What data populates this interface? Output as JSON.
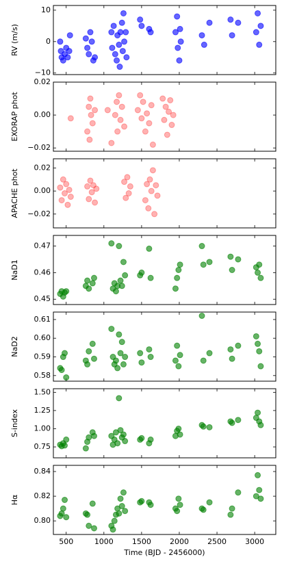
{
  "chart_data": [
    {
      "type": "scatter",
      "ylabel": "RV (m/s)",
      "color": "#0000ff",
      "opacity": 0.6,
      "x": [
        420,
        430,
        440,
        460,
        480,
        500,
        520,
        540,
        550,
        760,
        780,
        800,
        820,
        840,
        860,
        880,
        1100,
        1110,
        1130,
        1150,
        1170,
        1180,
        1200,
        1210,
        1220,
        1240,
        1250,
        1260,
        1270,
        1290,
        1300,
        1480,
        1500,
        1600,
        1620,
        1950,
        1970,
        1980,
        2000,
        2010,
        2020,
        2300,
        2330,
        2400,
        2680,
        2700,
        2780,
        3020,
        3040,
        3060,
        3080
      ],
      "values": [
        0,
        -3,
        -5,
        -6,
        -4,
        -2,
        -5,
        -3,
        2,
        1,
        -2,
        -4,
        3,
        0,
        -6,
        -5,
        3,
        -2,
        5,
        -4,
        -6,
        2,
        -1,
        -8,
        3,
        6,
        -3,
        9,
        0,
        3,
        -5,
        7,
        5,
        4,
        3,
        3,
        8,
        -2,
        -6,
        4,
        0,
        2,
        -1,
        6,
        7,
        2,
        6,
        3,
        9,
        -1,
        5
      ],
      "xlim": [
        330,
        3280
      ],
      "xticks": [
        500,
        1000,
        1500,
        2000,
        2500,
        3000
      ],
      "ylim": [
        -10.5,
        11.5
      ],
      "yticks": [
        {
          "value": -10,
          "label": "−10"
        },
        0,
        10
      ]
    },
    {
      "type": "scatter",
      "ylabel": "EXORAP phot",
      "color": "#ff0000",
      "opacity": 0.3,
      "x": [
        560,
        780,
        800,
        810,
        820,
        830,
        850,
        880,
        1050,
        1100,
        1150,
        1170,
        1180,
        1200,
        1220,
        1240,
        1270,
        1450,
        1480,
        1500,
        1520,
        1550,
        1570,
        1600,
        1630,
        1650,
        1780,
        1800,
        1820,
        1840,
        1860,
        1880,
        1900,
        1920
      ],
      "values": [
        -0.002,
        -0.01,
        0.005,
        -0.015,
        0.01,
        0,
        -0.005,
        0.003,
        0.003,
        -0.017,
        0,
        0.008,
        -0.01,
        0.012,
        -0.003,
        0.005,
        -0.007,
        0.003,
        0.012,
        -0.002,
        0.008,
        -0.01,
        0.001,
        -0.005,
        0.006,
        -0.018,
        0.01,
        -0.003,
        0.005,
        -0.012,
        0.002,
        0.009,
        -0.006,
        0
      ],
      "xlim": [
        330,
        3280
      ],
      "xticks": [
        500,
        1000,
        1500,
        2000,
        2500,
        3000
      ],
      "ylim": [
        -0.022,
        0.02
      ],
      "yticks": [
        {
          "value": -0.02,
          "label": "−0.02"
        },
        {
          "value": 0,
          "label": "0.00"
        },
        0.02
      ]
    },
    {
      "type": "scatter",
      "ylabel": "APACHE phot",
      "color": "#ff0000",
      "opacity": 0.3,
      "x": [
        420,
        440,
        460,
        480,
        500,
        520,
        540,
        560,
        780,
        800,
        820,
        840,
        860,
        880,
        900,
        1270,
        1290,
        1310,
        1330,
        1350,
        1550,
        1570,
        1590,
        1610,
        1630,
        1650,
        1670,
        1690,
        1710
      ],
      "values": [
        0.003,
        -0.008,
        0.01,
        -0.002,
        0.006,
        -0.012,
        0.001,
        -0.005,
        0.004,
        -0.007,
        0.009,
        -0.001,
        0.005,
        -0.01,
        0.002,
        0.008,
        -0.006,
        0.012,
        -0.002,
        0.004,
        -0.008,
        0.006,
        -0.015,
        0.01,
        0,
        0.018,
        -0.02,
        0.005,
        -0.004
      ],
      "xlim": [
        330,
        3280
      ],
      "xticks": [
        500,
        1000,
        1500,
        2000,
        2500,
        3000
      ],
      "ylim": [
        -0.032,
        0.028
      ],
      "yticks": [
        {
          "value": -0.02,
          "label": "−0.02"
        },
        {
          "value": 0,
          "label": "0.00"
        },
        0.02
      ]
    },
    {
      "type": "scatter",
      "ylabel": "NaD1",
      "color": "#008000",
      "opacity": 0.6,
      "x": [
        420,
        440,
        460,
        480,
        500,
        760,
        780,
        800,
        850,
        870,
        1100,
        1120,
        1140,
        1160,
        1180,
        1200,
        1220,
        1240,
        1260,
        1280,
        1480,
        1500,
        1600,
        1620,
        1950,
        1970,
        1990,
        2010,
        2300,
        2320,
        2400,
        2680,
        2700,
        2780,
        3020,
        3040,
        3060,
        3080
      ],
      "values": [
        0.452,
        0.453,
        0.451,
        0.4525,
        0.453,
        0.455,
        0.457,
        0.454,
        0.456,
        0.458,
        0.471,
        0.454,
        0.456,
        0.453,
        0.455,
        0.47,
        0.457,
        0.455,
        0.464,
        0.459,
        0.459,
        0.46,
        0.469,
        0.458,
        0.454,
        0.458,
        0.461,
        0.463,
        0.47,
        0.463,
        0.464,
        0.466,
        0.461,
        0.465,
        0.462,
        0.46,
        0.463,
        0.458
      ],
      "xlim": [
        330,
        3280
      ],
      "xticks": [
        500,
        1000,
        1500,
        2000,
        2500,
        3000
      ],
      "ylim": [
        0.448,
        0.474
      ],
      "yticks": [
        0.45,
        0.46,
        0.47
      ]
    },
    {
      "type": "scatter",
      "ylabel": "NaD2",
      "color": "#008000",
      "opacity": 0.6,
      "x": [
        420,
        440,
        460,
        480,
        500,
        760,
        780,
        800,
        850,
        870,
        1100,
        1120,
        1140,
        1160,
        1180,
        1200,
        1220,
        1240,
        1260,
        1280,
        1480,
        1500,
        1600,
        1620,
        1950,
        1970,
        1990,
        2010,
        2300,
        2320,
        2400,
        2680,
        2700,
        2780,
        3020,
        3040,
        3060,
        3080
      ],
      "values": [
        0.584,
        0.583,
        0.59,
        0.592,
        0.579,
        0.588,
        0.586,
        0.593,
        0.597,
        0.589,
        0.605,
        0.59,
        0.586,
        0.588,
        0.584,
        0.602,
        0.592,
        0.598,
        0.586,
        0.59,
        0.592,
        0.587,
        0.594,
        0.59,
        0.588,
        0.596,
        0.585,
        0.591,
        0.612,
        0.588,
        0.592,
        0.594,
        0.589,
        0.596,
        0.601,
        0.597,
        0.593,
        0.585
      ],
      "xlim": [
        330,
        3280
      ],
      "xticks": [
        500,
        1000,
        1500,
        2000,
        2500,
        3000
      ],
      "ylim": [
        0.577,
        0.614
      ],
      "yticks": [
        0.58,
        0.59,
        {
          "value": 0.6,
          "label": "0.60"
        },
        0.61
      ]
    },
    {
      "type": "scatter",
      "ylabel": "S-index",
      "color": "#008000",
      "opacity": 0.6,
      "x": [
        420,
        440,
        460,
        480,
        500,
        760,
        780,
        800,
        850,
        870,
        1100,
        1120,
        1140,
        1160,
        1180,
        1200,
        1220,
        1240,
        1260,
        1280,
        1480,
        1500,
        1600,
        1620,
        1950,
        1970,
        1990,
        2010,
        2300,
        2320,
        2400,
        2680,
        2700,
        2780,
        3020,
        3040,
        3060,
        3080
      ],
      "values": [
        0.78,
        0.76,
        0.8,
        0.77,
        0.85,
        0.73,
        0.82,
        0.88,
        0.95,
        0.9,
        0.9,
        0.78,
        0.85,
        0.95,
        0.8,
        1.42,
        0.98,
        0.88,
        0.92,
        0.83,
        0.85,
        0.87,
        0.8,
        0.85,
        0.9,
        0.97,
        1.0,
        0.92,
        1.05,
        1.03,
        1.02,
        1.1,
        1.08,
        1.12,
        1.15,
        1.22,
        1.1,
        1.05
      ],
      "xlim": [
        330,
        3280
      ],
      "xticks": [
        500,
        1000,
        1500,
        2000,
        2500,
        3000
      ],
      "ylim": [
        0.6,
        1.55
      ],
      "yticks": [
        0.75,
        {
          "value": 1,
          "label": "1.00"
        },
        1.25,
        {
          "value": 1.5,
          "label": "1.50"
        }
      ]
    },
    {
      "type": "scatter",
      "ylabel": "Hα",
      "xlabel": "Time (BJD - 2456000)",
      "color": "#008000",
      "opacity": 0.6,
      "x": [
        420,
        440,
        460,
        480,
        500,
        760,
        780,
        800,
        850,
        870,
        1100,
        1120,
        1140,
        1160,
        1180,
        1200,
        1220,
        1240,
        1260,
        1280,
        1480,
        1500,
        1600,
        1620,
        1950,
        1970,
        1990,
        2010,
        2300,
        2320,
        2400,
        2680,
        2700,
        2780,
        3020,
        3040,
        3060,
        3080
      ],
      "values": [
        0.804,
        0.806,
        0.81,
        0.817,
        0.803,
        0.806,
        0.805,
        0.796,
        0.814,
        0.794,
        0.796,
        0.793,
        0.8,
        0.805,
        0.81,
        0.806,
        0.818,
        0.812,
        0.823,
        0.808,
        0.815,
        0.816,
        0.815,
        0.813,
        0.81,
        0.808,
        0.818,
        0.813,
        0.81,
        0.809,
        0.815,
        0.805,
        0.81,
        0.823,
        0.82,
        0.837,
        0.825,
        0.818
      ],
      "xlim": [
        330,
        3280
      ],
      "xticks": [
        500,
        1000,
        1500,
        2000,
        2500,
        3000
      ],
      "ylim": [
        0.789,
        0.845
      ],
      "yticks": [
        {
          "value": 0.8,
          "label": "0.80"
        },
        0.82,
        0.84
      ]
    }
  ]
}
